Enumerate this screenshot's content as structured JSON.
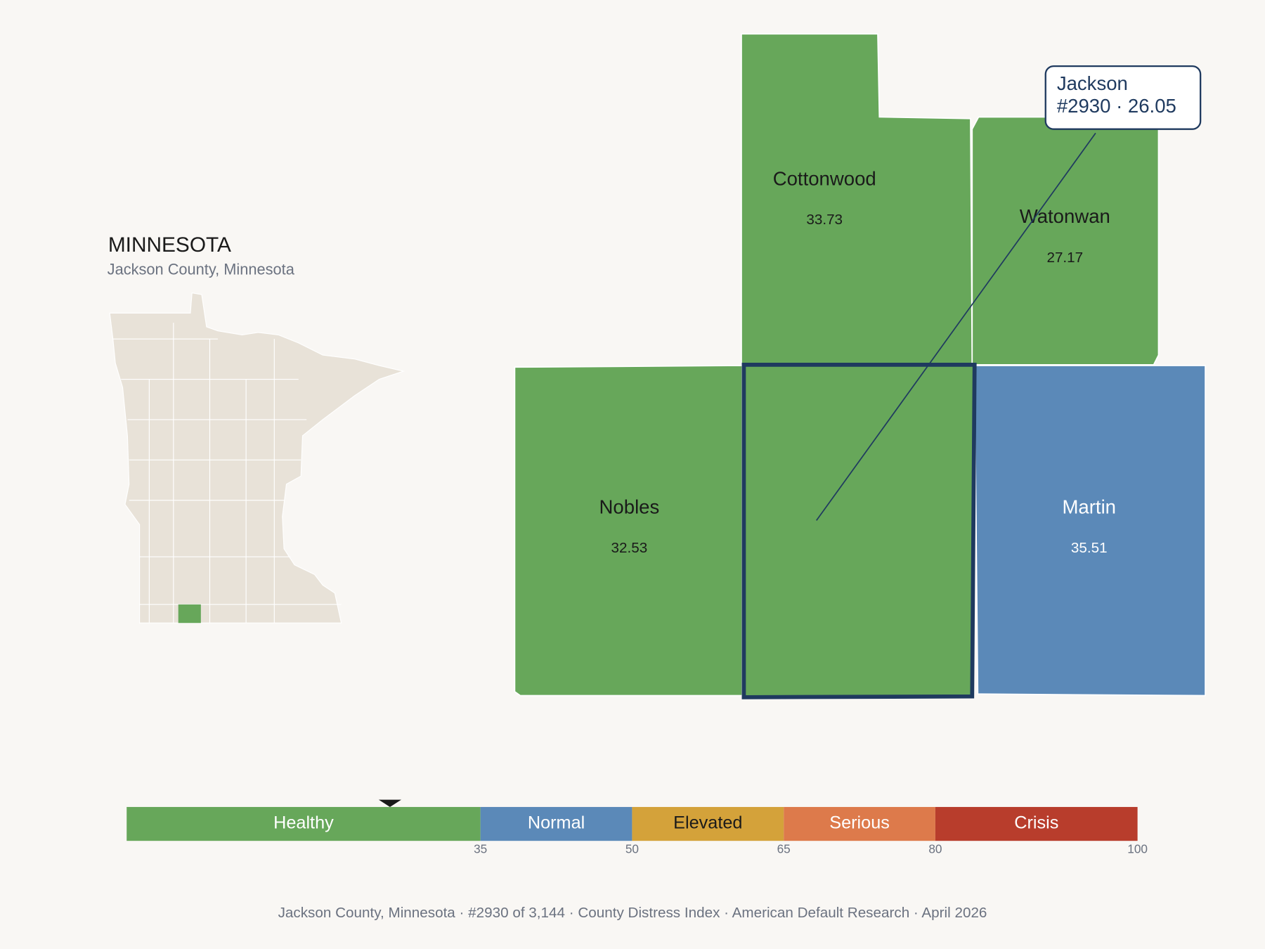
{
  "header": {
    "title": "MINNESOTA",
    "subtitle": "Jackson County, Minnesota"
  },
  "counties": [
    {
      "name": "Cottonwood",
      "value": 33.73,
      "color": "#67a75a",
      "label_color": "#1a1a1a"
    },
    {
      "name": "Watonwan",
      "value": 27.17,
      "color": "#67a75a",
      "label_color": "#1a1a1a"
    },
    {
      "name": "Nobles",
      "value": 32.53,
      "color": "#67a75a",
      "label_color": "#1a1a1a"
    },
    {
      "name": "Martin",
      "value": 35.51,
      "color": "#5b89b8",
      "label_color": "#ffffff"
    }
  ],
  "selected": {
    "color": "#67a75a",
    "callout": [
      "Jackson",
      "#2930 · 26.05"
    ],
    "value": 26.05
  },
  "scale": {
    "xlim": [
      0,
      100
    ],
    "ticks": [
      35,
      50,
      65,
      80,
      100
    ],
    "segments": [
      {
        "name": "Healthy",
        "color": "#67a75a",
        "text_color": "#ffffff"
      },
      {
        "name": "Normal",
        "color": "#5b89b8",
        "text_color": "#ffffff"
      },
      {
        "name": "Elevated",
        "color": "#d4a23a",
        "text_color": "#1a1a1a"
      },
      {
        "name": "Serious",
        "color": "#dd7a4b",
        "text_color": "#ffffff"
      },
      {
        "name": "Crisis",
        "color": "#b83d2c",
        "text_color": "#ffffff"
      }
    ]
  },
  "footer": "Jackson County, Minnesota  ·  #2930 of 3,144  ·  County Distress Index  ·  American Default Research  ·  April 2026"
}
